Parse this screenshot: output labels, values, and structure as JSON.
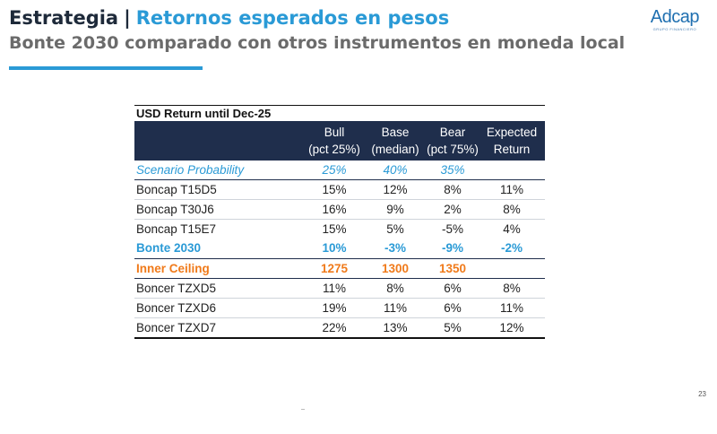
{
  "header": {
    "title_part_a": "Estrategia",
    "title_separator": "|",
    "title_part_b": "Retornos esperados en pesos",
    "subtitle": "Bonte 2030 comparado con otros instrumentos en moneda local"
  },
  "logo": {
    "word": "Adcap",
    "tagline": "GRUPO FINANCIERO"
  },
  "colors": {
    "accent_blue": "#2a9ad6",
    "header_navy": "#1f2e4c",
    "orange": "#f07a1a",
    "subtitle_gray": "#6b6b6b"
  },
  "table": {
    "caption": "USD Return until Dec-25",
    "headers": [
      {
        "line1": "",
        "line2": ""
      },
      {
        "line1": "Bull",
        "line2": "(pct 25%)"
      },
      {
        "line1": "Base",
        "line2": "(median)"
      },
      {
        "line1": "Bear",
        "line2": "(pct 75%)"
      },
      {
        "line1": "Expected",
        "line2": "Return"
      }
    ],
    "rows": [
      [
        "Scenario Probability",
        "25%",
        "40%",
        "35%",
        ""
      ],
      [
        "Boncap T15D5",
        "15%",
        "12%",
        "8%",
        "11%"
      ],
      [
        "Boncap T30J6",
        "16%",
        "9%",
        "2%",
        "8%"
      ],
      [
        "Boncap T15E7",
        "15%",
        "5%",
        "-5%",
        "4%"
      ],
      [
        "Bonte 2030",
        "10%",
        "-3%",
        "-9%",
        "-2%"
      ],
      [
        "Inner Ceiling",
        "1275",
        "1300",
        "1350",
        ""
      ],
      [
        "Boncer TZXD5",
        "11%",
        "8%",
        "6%",
        "8%"
      ],
      [
        "Boncer TZXD6",
        "19%",
        "11%",
        "6%",
        "11%"
      ],
      [
        "Boncer TZXD7",
        "22%",
        "13%",
        "5%",
        "12%"
      ]
    ]
  },
  "page_number": "23"
}
